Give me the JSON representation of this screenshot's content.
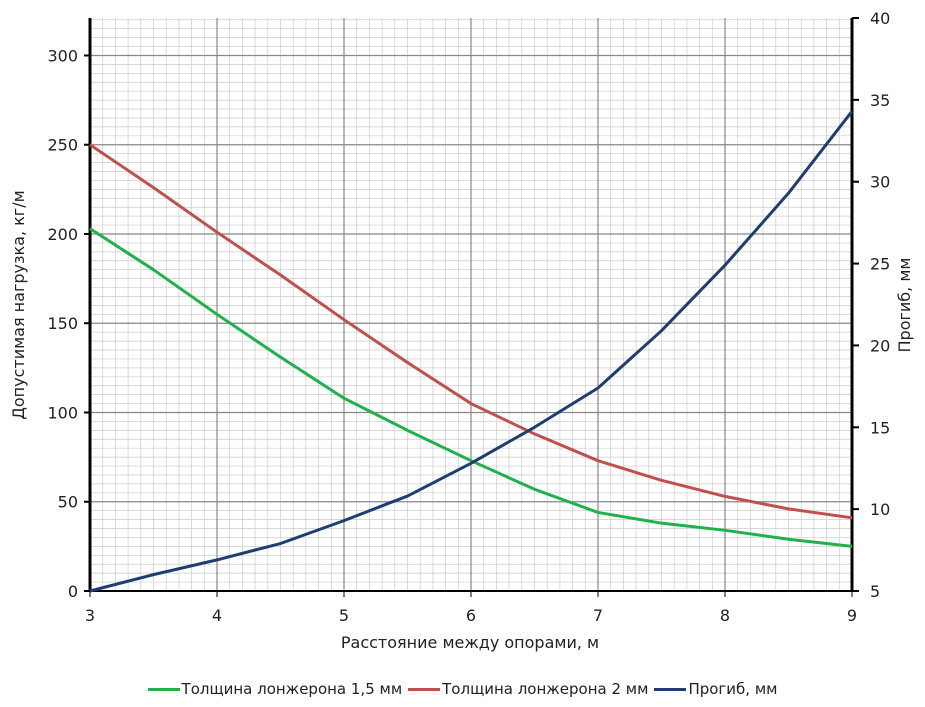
{
  "chart_data": {
    "type": "line",
    "x_label": "Расстояние между опорами, м",
    "y_label": "Допустимая нагрузка, кг/м",
    "y2_label": "Прогиб, мм",
    "x": [
      3,
      3.5,
      4,
      4.5,
      5,
      5.5,
      6,
      6.5,
      7,
      7.5,
      8,
      8.5,
      9
    ],
    "series": [
      {
        "name": "Толщина лонжерона 1,5 мм",
        "color": "#1fb14c",
        "values": [
          203,
          180,
          155,
          131,
          108,
          90,
          73,
          57,
          44,
          38,
          34,
          29,
          25
        ]
      },
      {
        "name": "Толщина лонжерона 2 мм",
        "color": "#c0504d",
        "values": [
          250,
          226,
          201,
          177,
          152,
          128,
          105,
          88,
          73,
          62,
          53,
          46,
          41
        ]
      },
      {
        "name": "Прогиб, мм",
        "color": "#1f3d70",
        "axis": "y2",
        "values": [
          5,
          6,
          6.9,
          7.9,
          9.3,
          10.8,
          12.8,
          15,
          17.4,
          20.9,
          24.9,
          29.3,
          34.3
        ]
      }
    ],
    "xlim": [
      3,
      9
    ],
    "xticks": [
      3,
      4,
      5,
      6,
      7,
      8,
      9
    ],
    "ylim": [
      0,
      321
    ],
    "yticks": [
      0,
      50,
      100,
      150,
      200,
      250,
      300
    ],
    "y2lim": [
      5,
      40
    ],
    "y2ticks": [
      5,
      10,
      15,
      20,
      25,
      30,
      35,
      40
    ],
    "grid": true,
    "legend": "bottom"
  }
}
